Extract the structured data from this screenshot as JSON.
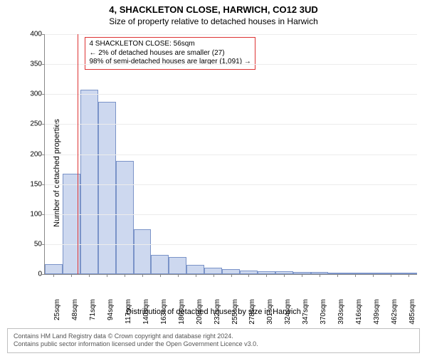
{
  "title_line1": "4, SHACKLETON CLOSE, HARWICH, CO12 3UD",
  "title_line2": "Size of property relative to detached houses in Harwich",
  "chart": {
    "type": "histogram",
    "ylabel": "Number of detached properties",
    "xlabel": "Distribution of detached houses by size in Harwich",
    "ylim": [
      0,
      400
    ],
    "ytick_step": 50,
    "xtick_unit": "sqm",
    "xtick_start": 25,
    "xtick_step": 23,
    "xtick_count": 21,
    "bar_color": "#cdd8ef",
    "bar_border": "#7a93c8",
    "grid_color": "#ececec",
    "axis_color": "#888888",
    "background": "#ffffff",
    "values": [
      17,
      167,
      307,
      287,
      189,
      75,
      32,
      28,
      15,
      11,
      8,
      6,
      5,
      5,
      3,
      3,
      2,
      1,
      1,
      1,
      1
    ],
    "reference": {
      "value_sqm": 56,
      "color": "#d33"
    },
    "annotation": {
      "line1": "4 SHACKLETON CLOSE: 56sqm",
      "line2": "← 2% of detached houses are smaller (27)",
      "line3": "98% of semi-detached houses are larger (1,091) →",
      "border_color": "#d33"
    }
  },
  "footer": {
    "line1": "Contains HM Land Registry data © Crown copyright and database right 2024.",
    "line2": "Contains public sector information licensed under the Open Government Licence v3.0."
  }
}
